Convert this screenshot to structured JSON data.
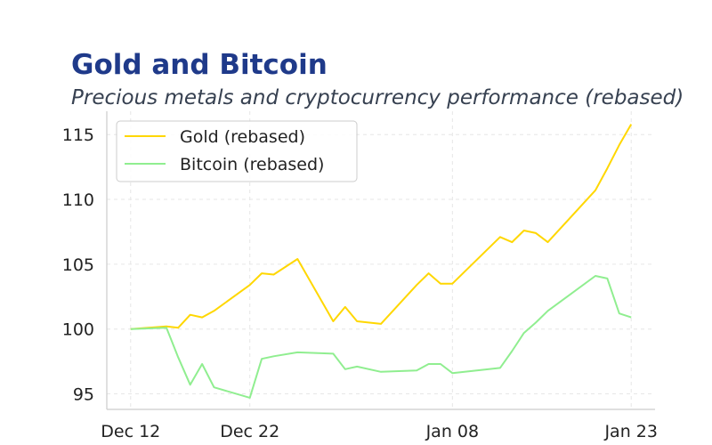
{
  "header": {
    "title": "Gold and Bitcoin",
    "subtitle": "Precious metals and cryptocurrency performance (rebased)"
  },
  "chart_data": {
    "type": "line",
    "title": "Gold and Bitcoin",
    "subtitle": "Precious metals and cryptocurrency performance (rebased)",
    "xlabel": "",
    "ylabel": "",
    "x_range": [
      "Dec 10",
      "Jan 25"
    ],
    "ylim": [
      93.8,
      116.8
    ],
    "y_ticks": [
      95,
      100,
      105,
      110,
      115
    ],
    "x_ticks": [
      {
        "date": "Dec 12",
        "label": "Dec 12"
      },
      {
        "date": "Dec 22",
        "label": "Dec 22"
      },
      {
        "date": "Jan 08",
        "label": "Jan 08"
      },
      {
        "date": "Jan 23",
        "label": "Jan 23"
      }
    ],
    "grid": true,
    "legend_position": "top-left",
    "x": [
      "Dec 12",
      "Dec 15",
      "Dec 16",
      "Dec 17",
      "Dec 18",
      "Dec 19",
      "Dec 22",
      "Dec 23",
      "Dec 24",
      "Dec 26",
      "Dec 29",
      "Dec 30",
      "Dec 31",
      "Jan 02",
      "Jan 05",
      "Jan 06",
      "Jan 07",
      "Jan 08",
      "Jan 12",
      "Jan 13",
      "Jan 14",
      "Jan 15",
      "Jan 16",
      "Jan 20",
      "Jan 21",
      "Jan 22",
      "Jan 23"
    ],
    "series": [
      {
        "name": "Gold (rebased)",
        "color": "#FFD700",
        "values": [
          100.0,
          100.2,
          100.1,
          101.1,
          100.9,
          101.4,
          103.4,
          104.3,
          104.2,
          105.4,
          100.6,
          101.7,
          100.6,
          100.4,
          103.4,
          104.3,
          103.5,
          103.5,
          107.1,
          106.7,
          107.6,
          107.4,
          106.7,
          110.7,
          112.4,
          114.2,
          115.8
        ]
      },
      {
        "name": "Bitcoin (rebased)",
        "color": "#90EE90",
        "values": [
          100.0,
          100.1,
          97.8,
          95.7,
          97.3,
          95.5,
          94.7,
          97.7,
          97.9,
          98.2,
          98.1,
          96.9,
          97.1,
          96.7,
          96.8,
          97.3,
          97.3,
          96.6,
          97.0,
          98.3,
          99.7,
          100.5,
          101.4,
          104.1,
          103.9,
          101.2,
          100.9
        ]
      }
    ]
  }
}
